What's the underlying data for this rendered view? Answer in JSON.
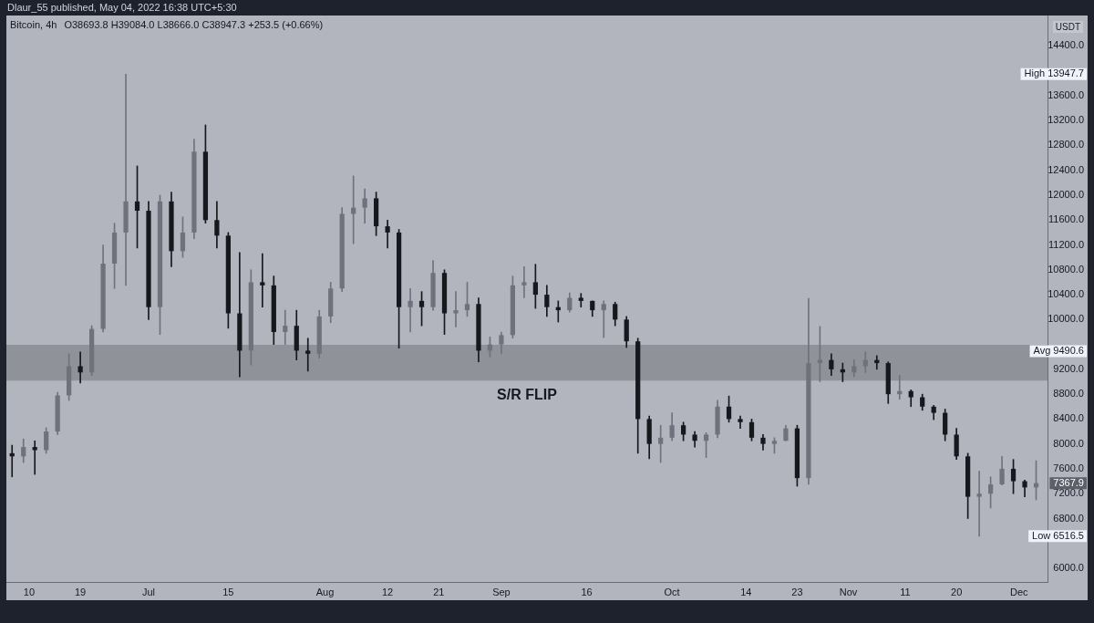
{
  "chart_data": {
    "type": "candlestick",
    "title": "Bitcoin, 4h",
    "subtitle": "O38693.8 H39084.0 L38666.0 C38947.3 +253.5 (+0.66%)",
    "ylabel": "USDT",
    "annotations": [
      "Dlaur_55 published, May 04, 2022 16:38 UTC+5:30",
      {
        "text": "7367.9",
        "y": 7367.9
      }
    ],
    "x": [
      "--06-07",
      "--06-09",
      "--06-11",
      "--06-13",
      "--06-15",
      "--06-17",
      "--06-19",
      "--06-21",
      "--06-23",
      "--06-25",
      "--06-27",
      "--06-29",
      "--07-01",
      "--07-03",
      "--07-05",
      "--07-07",
      "--07-09",
      "--07-11",
      "--07-13",
      "--07-15",
      "--07-17",
      "--07-19",
      "--07-21",
      "--07-23",
      "--07-25",
      "--07-27",
      "--07-29",
      "--07-31",
      "--08-02",
      "--08-04",
      "--08-06",
      "--08-08",
      "--08-10",
      "--08-12",
      "--08-14",
      "--08-16",
      "--08-18",
      "--08-20",
      "--08-22",
      "--08-24",
      "--08-26",
      "--08-28",
      "--08-30",
      "--09-01",
      "--09-03",
      "--09-05",
      "--09-07",
      "--09-09",
      "--09-11",
      "--09-13",
      "--09-15",
      "--09-17",
      "--09-19",
      "--09-21",
      "--09-23",
      "--09-25",
      "--09-27",
      "--09-29",
      "--10-01",
      "--10-03",
      "--10-05",
      "--10-07",
      "--10-09",
      "--10-11",
      "--10-13",
      "--10-15",
      "--10-17",
      "--10-19",
      "--10-21",
      "--10-23",
      "--10-25",
      "--10-27",
      "--10-29",
      "--10-31",
      "--11-02",
      "--11-04",
      "--11-06",
      "--11-08",
      "--11-10",
      "--11-12",
      "--11-14",
      "--11-16",
      "--11-18",
      "--11-20",
      "--11-22",
      "--11-24",
      "--11-26",
      "--11-28",
      "--11-30",
      "--12-02",
      "--12-04"
    ],
    "ohlc": [
      [
        7850,
        7980,
        7470,
        7800
      ],
      [
        7800,
        8080,
        7700,
        7950
      ],
      [
        7950,
        8050,
        7510,
        7900
      ],
      [
        7900,
        8260,
        7850,
        8200
      ],
      [
        8200,
        8830,
        8150,
        8780
      ],
      [
        8780,
        9450,
        8700,
        9250
      ],
      [
        9250,
        9480,
        8980,
        9150
      ],
      [
        9150,
        9900,
        9100,
        9850
      ],
      [
        9850,
        11200,
        9800,
        10900
      ],
      [
        10900,
        11550,
        10500,
        11400
      ],
      [
        11400,
        13947.7,
        10550,
        11900
      ],
      [
        11900,
        12470,
        11150,
        11750
      ],
      [
        11750,
        11900,
        10000,
        10200
      ],
      [
        10200,
        12000,
        9760,
        11900
      ],
      [
        11900,
        12050,
        10850,
        11100
      ],
      [
        11100,
        11650,
        11000,
        11400
      ],
      [
        11400,
        12900,
        11300,
        12700
      ],
      [
        12700,
        13130,
        11550,
        11600
      ],
      [
        11600,
        11900,
        11150,
        11350
      ],
      [
        11350,
        11400,
        9860,
        10100
      ],
      [
        10100,
        11080,
        9080,
        9500
      ],
      [
        9500,
        10800,
        9270,
        10600
      ],
      [
        10600,
        11060,
        10200,
        10550
      ],
      [
        10550,
        10700,
        9600,
        9800
      ],
      [
        9800,
        10150,
        9600,
        9900
      ],
      [
        9900,
        10150,
        9350,
        9500
      ],
      [
        9500,
        9700,
        9170,
        9450
      ],
      [
        9450,
        10150,
        9380,
        10050
      ],
      [
        10050,
        10600,
        9950,
        10500
      ],
      [
        10500,
        11800,
        10450,
        11700
      ],
      [
        11700,
        12310,
        11220,
        11800
      ],
      [
        11800,
        12100,
        11550,
        11950
      ],
      [
        11950,
        12050,
        11350,
        11500
      ],
      [
        11500,
        11600,
        11150,
        11400
      ],
      [
        11400,
        11450,
        9540,
        10200
      ],
      [
        10200,
        10500,
        9800,
        10300
      ],
      [
        10300,
        10450,
        9900,
        10200
      ],
      [
        10200,
        10950,
        10150,
        10750
      ],
      [
        10750,
        10800,
        9760,
        10100
      ],
      [
        10100,
        10450,
        9880,
        10150
      ],
      [
        10150,
        10600,
        10050,
        10250
      ],
      [
        10250,
        10350,
        9320,
        9500
      ],
      [
        9500,
        9720,
        9400,
        9600
      ],
      [
        9600,
        9800,
        9450,
        9750
      ],
      [
        9750,
        10700,
        9700,
        10550
      ],
      [
        10550,
        10850,
        10350,
        10600
      ],
      [
        10600,
        10890,
        10180,
        10400
      ],
      [
        10400,
        10550,
        10050,
        10200
      ],
      [
        10200,
        10300,
        9960,
        10150
      ],
      [
        10150,
        10430,
        10120,
        10350
      ],
      [
        10350,
        10420,
        10200,
        10300
      ],
      [
        10300,
        10300,
        10050,
        10150
      ],
      [
        10150,
        10300,
        9710,
        10250
      ],
      [
        10250,
        10280,
        9900,
        10000
      ],
      [
        10000,
        10050,
        9550,
        9650
      ],
      [
        9650,
        9700,
        7850,
        8400
      ],
      [
        8400,
        8450,
        7760,
        8000
      ],
      [
        8000,
        8300,
        7700,
        8100
      ],
      [
        8100,
        8500,
        8050,
        8300
      ],
      [
        8300,
        8350,
        8050,
        8150
      ],
      [
        8150,
        8200,
        7950,
        8050
      ],
      [
        8050,
        8180,
        7780,
        8150
      ],
      [
        8150,
        8700,
        8100,
        8600
      ],
      [
        8600,
        8770,
        8350,
        8400
      ],
      [
        8400,
        8450,
        8250,
        8350
      ],
      [
        8350,
        8400,
        8050,
        8100
      ],
      [
        8100,
        8150,
        7900,
        8000
      ],
      [
        8000,
        8100,
        7850,
        8050
      ],
      [
        8050,
        8300,
        8050,
        8250
      ],
      [
        8250,
        8300,
        7320,
        7450
      ],
      [
        7450,
        10340,
        7350,
        9300
      ],
      [
        9300,
        9890,
        9000,
        9350
      ],
      [
        9350,
        9450,
        9100,
        9200
      ],
      [
        9200,
        9300,
        9000,
        9150
      ],
      [
        9150,
        9350,
        9080,
        9250
      ],
      [
        9250,
        9480,
        9150,
        9350
      ],
      [
        9350,
        9420,
        9200,
        9300
      ],
      [
        9300,
        9320,
        8650,
        8800
      ],
      [
        8800,
        9100,
        8720,
        8850
      ],
      [
        8850,
        8870,
        8600,
        8750
      ],
      [
        8750,
        8800,
        8540,
        8600
      ],
      [
        8600,
        8620,
        8390,
        8500
      ],
      [
        8500,
        8560,
        8050,
        8150
      ],
      [
        8150,
        8250,
        7750,
        7800
      ],
      [
        7800,
        7850,
        6800,
        7150
      ],
      [
        7150,
        7560,
        6516.5,
        7200
      ],
      [
        7200,
        7470,
        6970,
        7350
      ],
      [
        7350,
        7800,
        7340,
        7600
      ],
      [
        7600,
        7750,
        7200,
        7400
      ],
      [
        7400,
        7420,
        7150,
        7300
      ],
      [
        7300,
        7730,
        7100,
        7367.9
      ]
    ],
    "colors": [
      "#16181d",
      "#6f727b",
      "#16181d",
      "#6f727b",
      "#6f727b",
      "#6f727b",
      "#16181d",
      "#6f727b",
      "#6f727b",
      "#6f727b",
      "#6f727b",
      "#16181d",
      "#16181d",
      "#6f727b",
      "#16181d",
      "#6f727b",
      "#6f727b",
      "#16181d",
      "#16181d",
      "#16181d",
      "#16181d",
      "#6f727b",
      "#16181d",
      "#16181d",
      "#6f727b",
      "#16181d",
      "#16181d",
      "#6f727b",
      "#6f727b",
      "#6f727b",
      "#6f727b",
      "#6f727b",
      "#16181d",
      "#16181d",
      "#16181d",
      "#6f727b",
      "#16181d",
      "#6f727b",
      "#16181d",
      "#6f727b",
      "#6f727b",
      "#16181d",
      "#6f727b",
      "#6f727b",
      "#6f727b",
      "#6f727b",
      "#16181d",
      "#16181d",
      "#16181d",
      "#6f727b",
      "#16181d",
      "#16181d",
      "#6f727b",
      "#16181d",
      "#16181d",
      "#16181d",
      "#16181d",
      "#6f727b",
      "#6f727b",
      "#16181d",
      "#16181d",
      "#6f727b",
      "#6f727b",
      "#16181d",
      "#16181d",
      "#16181d",
      "#16181d",
      "#6f727b",
      "#6f727b",
      "#16181d",
      "#6f727b",
      "#6f727b",
      "#16181d",
      "#16181d",
      "#6f727b",
      "#6f727b",
      "#16181d",
      "#16181d",
      "#6f727b",
      "#16181d",
      "#16181d",
      "#16181d",
      "#16181d",
      "#16181d",
      "#16181d",
      "#6f727b",
      "#6f727b",
      "#6f727b",
      "#16181d",
      "#16181d",
      "#6f727b"
    ],
    "xlim": [
      "--06-06",
      "--12-06"
    ],
    "xticks": [
      {
        "value": "--06-10",
        "label": "10"
      },
      {
        "value": "--06-19",
        "label": "19"
      },
      {
        "value": "--07-01",
        "label": "Jul"
      },
      {
        "value": "--07-15",
        "label": "15"
      },
      {
        "value": "--08-01",
        "label": "Aug"
      },
      {
        "value": "--08-12",
        "label": "12"
      },
      {
        "value": "--08-21",
        "label": "21"
      },
      {
        "value": "--09-01",
        "label": "Sep"
      },
      {
        "value": "--09-16",
        "label": "16"
      },
      {
        "value": "--10-01",
        "label": "Oct"
      },
      {
        "value": "--10-14",
        "label": "14"
      },
      {
        "value": "--10-23",
        "label": "23"
      },
      {
        "value": "--11-01",
        "label": "Nov"
      },
      {
        "value": "--11-11",
        "label": "11"
      },
      {
        "value": "--11-20",
        "label": "20"
      },
      {
        "value": "--12-01",
        "label": "Dec"
      }
    ],
    "ylim": [
      5780,
      14890
    ],
    "yticks": [
      {
        "value": 6000,
        "label": "6000.0"
      },
      {
        "value": 6516.5,
        "label": "Low 6516.5"
      },
      {
        "value": 6800,
        "label": "6800.0"
      },
      {
        "value": 7200,
        "label": "7200.0"
      },
      {
        "value": 7600,
        "label": "7600.0"
      },
      {
        "value": 8000,
        "label": "8000.0"
      },
      {
        "value": 8400,
        "label": "8400.0"
      },
      {
        "value": 8800,
        "label": "8800.0"
      },
      {
        "value": 9200,
        "label": "9200.0"
      },
      {
        "value": 9490.6,
        "label": "Avg 9490.6"
      },
      {
        "value": 10000,
        "label": "10000.0"
      },
      {
        "value": 10400,
        "label": "10400.0"
      },
      {
        "value": 10800,
        "label": "10800.0"
      },
      {
        "value": 11200,
        "label": "11200.0"
      },
      {
        "value": 11600,
        "label": "11600.0"
      },
      {
        "value": 12000,
        "label": "12000.0"
      },
      {
        "value": 12400,
        "label": "12400.0"
      },
      {
        "value": 12800,
        "label": "12800.0"
      },
      {
        "value": 13200,
        "label": "13200.0"
      },
      {
        "value": 13600,
        "label": "13600.0"
      },
      {
        "value": 13947.7,
        "label": "High 13947.7"
      },
      {
        "value": 14400,
        "label": "14400.0"
      }
    ],
    "bands": [
      {
        "axis": "y",
        "from": 9020,
        "to": 9595,
        "label": "S/R FLIP",
        "color": "#8f9298"
      }
    ]
  }
}
